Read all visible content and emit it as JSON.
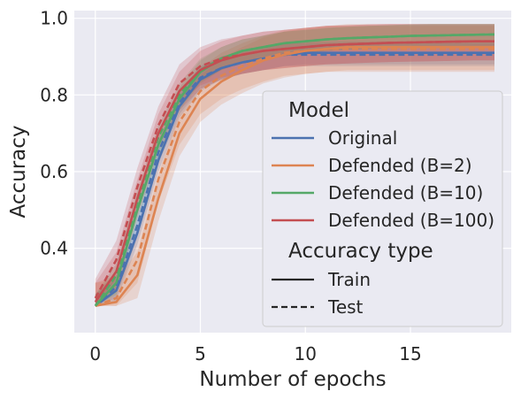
{
  "chart_data": {
    "type": "line",
    "xlabel": "Number of epochs",
    "ylabel": "Accuracy",
    "xlim": [
      -1.0,
      19.8
    ],
    "ylim": [
      0.18,
      1.02
    ],
    "xticks": [
      0,
      5,
      10,
      15
    ],
    "yticks": [
      0.4,
      0.6,
      0.8,
      1.0
    ],
    "xtick_labels": [
      "0",
      "5",
      "10",
      "15"
    ],
    "ytick_labels": [
      "0.4",
      "0.6",
      "0.8",
      "1.0"
    ],
    "grid": true,
    "legend_placement": "right",
    "legend": {
      "model_title": "Model",
      "accuracy_title": "Accuracy type",
      "models": [
        {
          "label": "Original",
          "color": "#4c72b0"
        },
        {
          "label": "Defended (B=2)",
          "color": "#dd8452"
        },
        {
          "label": "Defended (B=10)",
          "color": "#55a868"
        },
        {
          "label": "Defended (B=100)",
          "color": "#c44e52"
        }
      ],
      "styles": [
        {
          "label": "Train",
          "dash": "solid"
        },
        {
          "label": "Test",
          "dash": "dashed"
        }
      ]
    },
    "x": [
      0,
      1,
      2,
      3,
      4,
      5,
      6,
      7,
      8,
      9,
      10,
      11,
      12,
      13,
      14,
      15,
      16,
      17,
      18,
      19
    ],
    "series": [
      {
        "model": "Original",
        "accuracy_type": "Train",
        "color": "#4c72b0",
        "values": [
          0.25,
          0.29,
          0.44,
          0.63,
          0.77,
          0.84,
          0.87,
          0.885,
          0.895,
          0.905,
          0.91,
          0.91,
          0.91,
          0.91,
          0.91,
          0.91,
          0.91,
          0.91,
          0.91,
          0.91
        ],
        "band": 0.03
      },
      {
        "model": "Original",
        "accuracy_type": "Test",
        "color": "#4c72b0",
        "values": [
          0.25,
          0.3,
          0.46,
          0.65,
          0.78,
          0.845,
          0.87,
          0.885,
          0.895,
          0.905,
          0.905,
          0.905,
          0.905,
          0.905,
          0.905,
          0.905,
          0.905,
          0.905,
          0.905,
          0.905
        ],
        "band": 0.03
      },
      {
        "model": "Defended (B=2)",
        "accuracy_type": "Train",
        "color": "#dd8452",
        "values": [
          0.25,
          0.26,
          0.33,
          0.53,
          0.7,
          0.79,
          0.835,
          0.865,
          0.89,
          0.905,
          0.915,
          0.92,
          0.925,
          0.925,
          0.925,
          0.925,
          0.925,
          0.925,
          0.925,
          0.925
        ],
        "band": 0.06
      },
      {
        "model": "Defended (B=2)",
        "accuracy_type": "Test",
        "color": "#dd8452",
        "values": [
          0.25,
          0.27,
          0.37,
          0.58,
          0.73,
          0.81,
          0.85,
          0.875,
          0.895,
          0.91,
          0.915,
          0.92,
          0.92,
          0.92,
          0.92,
          0.92,
          0.92,
          0.92,
          0.92,
          0.92
        ],
        "band": 0.06
      },
      {
        "model": "Defended (B=10)",
        "accuracy_type": "Train",
        "color": "#55a868",
        "values": [
          0.25,
          0.31,
          0.5,
          0.67,
          0.79,
          0.86,
          0.895,
          0.915,
          0.925,
          0.935,
          0.94,
          0.945,
          0.948,
          0.95,
          0.952,
          0.954,
          0.955,
          0.956,
          0.957,
          0.958
        ],
        "band": 0.03
      },
      {
        "model": "Defended (B=10)",
        "accuracy_type": "Test",
        "color": "#55a868",
        "values": [
          0.25,
          0.33,
          0.52,
          0.69,
          0.8,
          0.865,
          0.895,
          0.915,
          0.925,
          0.935,
          0.94,
          0.945,
          0.948,
          0.95,
          0.952,
          0.954,
          0.955,
          0.956,
          0.957,
          0.958
        ],
        "band": 0.03
      },
      {
        "model": "Defended (B=100)",
        "accuracy_type": "Train",
        "color": "#c44e52",
        "values": [
          0.26,
          0.34,
          0.53,
          0.7,
          0.81,
          0.865,
          0.89,
          0.905,
          0.915,
          0.92,
          0.925,
          0.93,
          0.932,
          0.934,
          0.936,
          0.937,
          0.938,
          0.939,
          0.94,
          0.94
        ],
        "band": 0.05
      },
      {
        "model": "Defended (B=100)",
        "accuracy_type": "Test",
        "color": "#c44e52",
        "values": [
          0.27,
          0.37,
          0.56,
          0.72,
          0.83,
          0.875,
          0.895,
          0.905,
          0.915,
          0.92,
          0.925,
          0.93,
          0.932,
          0.934,
          0.936,
          0.937,
          0.938,
          0.939,
          0.94,
          0.94
        ],
        "band": 0.05
      }
    ]
  }
}
